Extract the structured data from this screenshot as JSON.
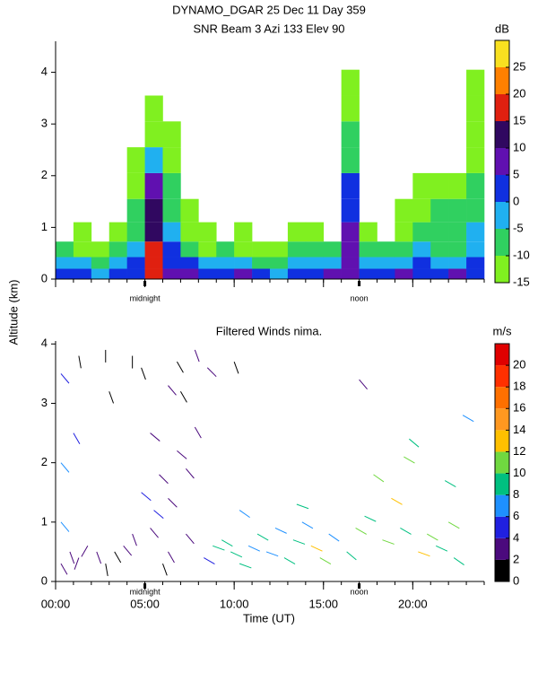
{
  "chart_data": [
    {
      "type": "heatmap",
      "title": "DYNAMO_DGAR  25 Dec 11 Day 359",
      "subtitle": "SNR Beam 3 Azi 133 Elev 90",
      "ylabel": "Altitude (km)",
      "colorbar_label": "dB",
      "xlim": [
        0,
        24
      ],
      "xticks": [
        0,
        5,
        10,
        15,
        20
      ],
      "ylim": [
        0,
        4.6
      ],
      "yticks": [
        0,
        1,
        2,
        3,
        4
      ],
      "clim": [
        -15,
        30
      ],
      "cticks": [
        -15,
        -10,
        -5,
        0,
        5,
        10,
        15,
        20,
        25
      ],
      "colors": [
        "#80f020",
        "#30d060",
        "#20b0f0",
        "#1030e0",
        "#6010b0",
        "#300860",
        "#e02010",
        "#ff8000",
        "#f8e020"
      ],
      "annotations": [
        {
          "text": "midnight",
          "x": 5
        },
        {
          "text": "noon",
          "x": 17
        }
      ],
      "x": [
        0.5,
        1.5,
        2.5,
        3.5,
        4.5,
        5.5,
        6.5,
        7.5,
        8.5,
        9.5,
        10.5,
        11.5,
        12.5,
        13.5,
        14.5,
        15.5,
        16.5,
        17.5,
        18.5,
        19.5,
        20.5,
        21.5,
        22.5,
        23.5
      ],
      "y": [
        0.1,
        0.3,
        0.55,
        0.9,
        1.3,
        1.8,
        2.3,
        2.8,
        3.3,
        3.8
      ],
      "values": [
        [
          3,
          0,
          -3,
          0,
          3,
          18,
          6,
          5,
          2,
          3,
          5,
          3,
          -2,
          0,
          3,
          5,
          8,
          2,
          3,
          5,
          3,
          2,
          6,
          4
        ],
        [
          -3,
          -5,
          -8,
          -5,
          0,
          17,
          3,
          0,
          -5,
          -3,
          -5,
          -8,
          -8,
          -5,
          -3,
          -5,
          9,
          -3,
          -5,
          -3,
          0,
          -5,
          -3,
          2
        ],
        [
          -10,
          -12,
          -12,
          -10,
          -5,
          15,
          0,
          -8,
          -12,
          -10,
          -12,
          -12,
          -12,
          -10,
          -8,
          -10,
          7,
          -10,
          -10,
          -8,
          -5,
          -8,
          -8,
          -3
        ],
        [
          null,
          -13,
          null,
          -13,
          -8,
          13,
          -5,
          -12,
          -13,
          null,
          -13,
          null,
          null,
          -13,
          -13,
          null,
          5,
          -13,
          null,
          -12,
          -10,
          -10,
          -8,
          -5
        ],
        [
          null,
          null,
          null,
          null,
          -10,
          10,
          -8,
          -13,
          null,
          null,
          null,
          null,
          null,
          null,
          null,
          null,
          2,
          null,
          null,
          -13,
          -12,
          -10,
          -10,
          -8
        ],
        [
          null,
          null,
          null,
          null,
          -12,
          6,
          -10,
          null,
          null,
          null,
          null,
          null,
          null,
          null,
          null,
          null,
          0,
          null,
          null,
          null,
          -13,
          -12,
          -12,
          -10
        ],
        [
          null,
          null,
          null,
          null,
          -13,
          -5,
          -12,
          null,
          null,
          null,
          null,
          null,
          null,
          null,
          null,
          null,
          -8,
          null,
          null,
          null,
          null,
          null,
          null,
          -12
        ],
        [
          null,
          null,
          null,
          null,
          null,
          -12,
          -13,
          null,
          null,
          null,
          null,
          null,
          null,
          null,
          null,
          null,
          -10,
          null,
          null,
          null,
          null,
          null,
          null,
          -12
        ],
        [
          null,
          null,
          null,
          null,
          null,
          -13,
          null,
          null,
          null,
          null,
          null,
          null,
          null,
          null,
          null,
          null,
          -12,
          null,
          null,
          null,
          null,
          null,
          null,
          -12
        ],
        [
          null,
          null,
          null,
          null,
          null,
          null,
          null,
          null,
          null,
          null,
          null,
          null,
          null,
          null,
          null,
          null,
          -13,
          null,
          null,
          null,
          null,
          null,
          null,
          -12
        ]
      ]
    },
    {
      "type": "barbs",
      "title": "Filtered Winds nima.",
      "xlabel": "Time (UT)",
      "colorbar_label": "m/s",
      "xlim": [
        0,
        24
      ],
      "xticks": [
        {
          "value": 0,
          "label": "00:00"
        },
        {
          "value": 5,
          "label": "05:00"
        },
        {
          "value": 10,
          "label": "10:00"
        },
        {
          "value": 15,
          "label": "15:00"
        },
        {
          "value": 20,
          "label": "20:00"
        }
      ],
      "ylim": [
        0,
        4.05
      ],
      "yticks": [
        0,
        1,
        2,
        3,
        4
      ],
      "clim": [
        0,
        22
      ],
      "cticks": [
        0,
        2,
        4,
        6,
        8,
        10,
        12,
        14,
        16,
        18,
        20
      ],
      "colors": [
        "#000000",
        "#4b0a7d",
        "#2020e0",
        "#1e90ff",
        "#00c080",
        "#70d840",
        "#ffc000",
        "#ff9820",
        "#ff7000",
        "#ff3000",
        "#e00000"
      ],
      "annotations": [
        {
          "text": "midnight",
          "x": 5
        },
        {
          "text": "noon",
          "x": 17
        }
      ],
      "x": [
        0.3,
        0.3,
        0.3,
        0.3,
        0.8,
        1.3,
        1.3,
        1.8,
        2.3,
        2.8,
        2.8,
        3.3,
        3.8,
        4.3,
        4.3,
        4.8,
        4.8,
        5.3,
        5.3,
        5.8,
        6.3,
        6.3,
        6.3,
        6.8,
        6.8,
        7.3,
        7.3,
        7.8,
        7.8,
        8.3,
        8.8,
        9.3,
        9.8,
        10.3,
        10.3,
        10.8,
        11.3,
        11.8,
        12.3,
        12.8,
        13.3,
        13.8,
        14.3,
        14.8,
        15.3,
        16.3,
        16.8,
        17.3,
        17.8,
        18.3,
        18.8,
        19.3,
        19.8,
        20.3,
        20.8,
        21.3,
        21.8,
        22.3,
        22.8,
        1.0,
        3.0,
        5.5,
        7.0,
        8.5,
        10.0,
        13.5,
        17.0,
        19.5,
        22.0,
        6.0
      ],
      "y": [
        0.3,
        1.0,
        2.0,
        3.5,
        0.5,
        0.4,
        3.8,
        0.6,
        0.5,
        0.3,
        3.9,
        0.5,
        0.6,
        0.8,
        3.8,
        1.5,
        3.6,
        2.5,
        0.9,
        1.8,
        0.5,
        1.4,
        3.3,
        2.2,
        3.7,
        0.8,
        1.9,
        2.6,
        3.9,
        0.4,
        0.6,
        0.7,
        0.5,
        0.3,
        1.2,
        0.6,
        0.8,
        0.5,
        0.9,
        0.4,
        0.7,
        1.0,
        0.6,
        0.4,
        0.8,
        0.5,
        0.9,
        1.1,
        1.8,
        0.7,
        1.4,
        0.9,
        2.4,
        0.5,
        0.8,
        0.6,
        1.7,
        0.4,
        2.8,
        2.5,
        3.2,
        1.2,
        3.2,
        3.6,
        3.7,
        1.3,
        3.4,
        2.1,
        1.0,
        0.3
      ],
      "speed": [
        3,
        6,
        7,
        5,
        3,
        2,
        1,
        3,
        2,
        1,
        1,
        1,
        3,
        3,
        1,
        4,
        1,
        3,
        3,
        3,
        2,
        3,
        2,
        3,
        1,
        3,
        2,
        3,
        2,
        4,
        9,
        8,
        9,
        8,
        6,
        7,
        8,
        7,
        6,
        8,
        9,
        7,
        12,
        11,
        6,
        9,
        11,
        8,
        11,
        10,
        12,
        9,
        8,
        13,
        10,
        9,
        8,
        8,
        7,
        5,
        1,
        5,
        1,
        3,
        1,
        9,
        3,
        10,
        10,
        1
      ],
      "direction": [
        30,
        40,
        40,
        40,
        20,
        340,
        10,
        330,
        20,
        10,
        0,
        30,
        40,
        20,
        0,
        50,
        20,
        50,
        40,
        45,
        30,
        45,
        40,
        50,
        30,
        40,
        40,
        30,
        20,
        60,
        70,
        60,
        65,
        70,
        55,
        65,
        60,
        70,
        65,
        60,
        70,
        60,
        65,
        60,
        55,
        50,
        60,
        65,
        55,
        70,
        60,
        60,
        50,
        70,
        60,
        65,
        60,
        55,
        60,
        30,
        20,
        50,
        30,
        45,
        20,
        70,
        40,
        60,
        60,
        20
      ]
    }
  ]
}
